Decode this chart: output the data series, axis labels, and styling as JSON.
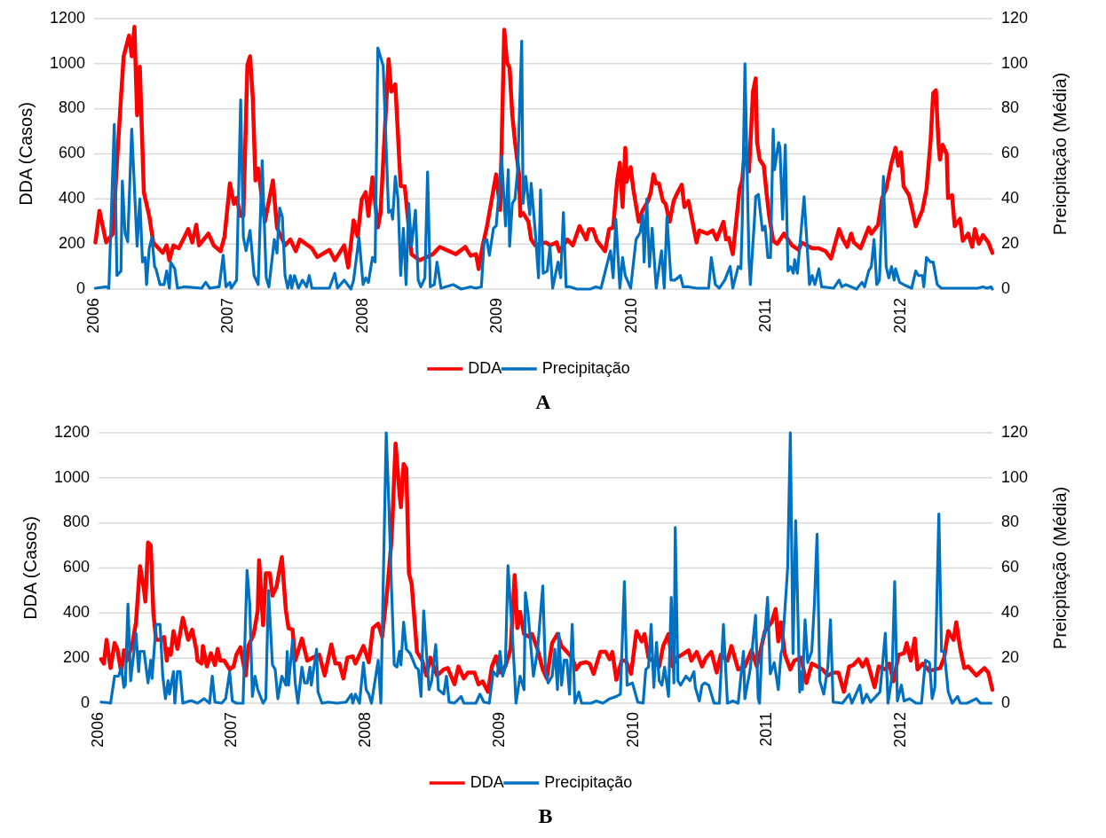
{
  "chart_data": [
    {
      "type": "line",
      "title": "A",
      "ylabel": "DDA (Casos)",
      "y2label": "Preicpitação (Média)",
      "xlim": [
        2006,
        2012.68
      ],
      "xticks": [
        2006,
        2007,
        2008,
        2009,
        2010,
        2011,
        2012
      ],
      "ylim": [
        0,
        1200
      ],
      "yticks": [
        0,
        200,
        400,
        600,
        800,
        1000,
        1200
      ],
      "y2lim": [
        0,
        120
      ],
      "y2ticks": [
        0,
        20,
        40,
        60,
        80,
        100,
        120
      ],
      "grid": "y",
      "legend": "bottom",
      "series": [
        {
          "name": "DDA",
          "color": "#ff0000",
          "x": [
            2006.01,
            2006.04,
            2006.09,
            2006.14,
            2006.17,
            2006.2,
            2006.22,
            2006.26,
            2006.28,
            2006.3,
            2006.32,
            2006.34,
            2006.37,
            2006.41,
            2006.44,
            2006.51,
            2006.54,
            2006.56,
            2006.59,
            2006.63,
            2006.7,
            2006.73,
            2006.76,
            2006.78,
            2006.85,
            2006.89,
            2006.94,
            2006.97,
            2007.01,
            2007.04,
            2007.06,
            2007.09,
            2007.11,
            2007.14,
            2007.16,
            2007.18,
            2007.2,
            2007.22,
            2007.27,
            2007.33,
            2007.36,
            2007.42,
            2007.46,
            2007.5,
            2007.53,
            2007.62,
            2007.66,
            2007.75,
            2007.79,
            2007.86,
            2007.89,
            2007.93,
            2007.96,
            2007.99,
            2008.02,
            2008.04,
            2008.07,
            2008.11,
            2008.13,
            2008.19,
            2008.21,
            2008.24,
            2008.28,
            2008.31,
            2008.36,
            2008.42,
            2008.52,
            2008.57,
            2008.69,
            2008.76,
            2008.8,
            2008.84,
            2008.86,
            2008.89,
            2008.92,
            2008.99,
            2009.02,
            2009.05,
            2009.07,
            2009.09,
            2009.11,
            2009.13,
            2009.16,
            2009.17,
            2009.19,
            2009.23,
            2009.25,
            2009.28,
            2009.36,
            2009.39,
            2009.44,
            2009.46,
            2009.52,
            2009.56,
            2009.61,
            2009.66,
            2009.68,
            2009.71,
            2009.74,
            2009.8,
            2009.83,
            2009.86,
            2009.89,
            2009.91,
            2009.93,
            2009.95,
            2009.96,
            2009.99,
            2010.01,
            2010.05,
            2010.08,
            2010.12,
            2010.14,
            2010.16,
            2010.18,
            2010.2,
            2010.23,
            2010.25,
            2010.28,
            2010.31,
            2010.34,
            2010.37,
            2010.39,
            2010.42,
            2010.45,
            2010.48,
            2010.5,
            2010.56,
            2010.6,
            2010.63,
            2010.68,
            2010.7,
            2010.72,
            2010.75,
            2010.8,
            2010.82,
            2010.84,
            2010.87,
            2010.9,
            2010.92,
            2010.93,
            2010.95,
            2010.98,
            2011.0,
            2011.02,
            2011.05,
            2011.08,
            2011.13,
            2011.16,
            2011.19,
            2011.24,
            2011.26,
            2011.3,
            2011.34,
            2011.39,
            2011.44,
            2011.48,
            2011.54,
            2011.57,
            2011.6,
            2011.63,
            2011.65,
            2011.7,
            2011.76,
            2011.78,
            2011.83,
            2011.86,
            2011.89,
            2011.93,
            2011.96,
            2011.98,
            2012.0,
            2012.02,
            2012.06,
            2012.09,
            2012.11,
            2012.16,
            2012.19,
            2012.22,
            2012.24,
            2012.26,
            2012.28,
            2012.29,
            2012.31,
            2012.34,
            2012.35,
            2012.38,
            2012.4,
            2012.44,
            2012.46,
            2012.5,
            2012.53,
            2012.55,
            2012.58,
            2012.61,
            2012.65,
            2012.68
          ],
          "values": [
            207,
            347,
            207,
            246,
            561,
            850,
            1033,
            1125,
            1033,
            1164,
            771,
            987,
            430,
            325,
            207,
            161,
            194,
            128,
            194,
            181,
            266,
            207,
            285,
            194,
            246,
            194,
            168,
            233,
            469,
            378,
            404,
            325,
            325,
            994,
            1033,
            850,
            482,
            535,
            299,
            482,
            273,
            194,
            220,
            168,
            220,
            181,
            142,
            174,
            128,
            194,
            96,
            305,
            233,
            397,
            430,
            325,
            496,
            273,
            338,
            1020,
            876,
            908,
            456,
            456,
            155,
            128,
            155,
            187,
            155,
            187,
            148,
            155,
            89,
            194,
            273,
            509,
            351,
            1151,
            1007,
            981,
            771,
            653,
            509,
            325,
            338,
            299,
            220,
            194,
            207,
            194,
            207,
            168,
            220,
            194,
            279,
            220,
            266,
            266,
            214,
            168,
            266,
            273,
            482,
            561,
            364,
            627,
            476,
            541,
            443,
            299,
            351,
            391,
            430,
            509,
            469,
            469,
            391,
            378,
            299,
            391,
            430,
            463,
            364,
            391,
            299,
            207,
            260,
            246,
            260,
            220,
            299,
            220,
            227,
            155,
            443,
            482,
            627,
            522,
            876,
            935,
            653,
            574,
            548,
            430,
            325,
            214,
            201,
            246,
            220,
            194,
            174,
            207,
            194,
            181,
            181,
            168,
            135,
            266,
            220,
            187,
            246,
            207,
            181,
            273,
            246,
            285,
            404,
            443,
            561,
            627,
            548,
            607,
            456,
            417,
            338,
            279,
            351,
            443,
            653,
            869,
            882,
            640,
            574,
            640,
            600,
            404,
            417,
            279,
            312,
            214,
            246,
            187,
            266,
            201,
            240,
            207,
            161
          ]
        },
        {
          "name": "Precipitação",
          "color": "#0070c0",
          "axis": "y2",
          "x": [
            2006.01,
            2006.09,
            2006.11,
            2006.15,
            2006.17,
            2006.2,
            2006.21,
            2006.23,
            2006.25,
            2006.28,
            2006.32,
            2006.34,
            2006.36,
            2006.38,
            2006.39,
            2006.41,
            2006.43,
            2006.45,
            2006.46,
            2006.49,
            2006.52,
            2006.54,
            2006.56,
            2006.57,
            2006.6,
            2006.62,
            2006.67,
            2006.8,
            2006.83,
            2006.86,
            2006.93,
            2006.96,
            2006.98,
            2007.01,
            2007.02,
            2007.06,
            2007.09,
            2007.11,
            2007.13,
            2007.16,
            2007.19,
            2007.22,
            2007.25,
            2007.28,
            2007.3,
            2007.34,
            2007.36,
            2007.38,
            2007.4,
            2007.42,
            2007.44,
            2007.46,
            2007.47,
            2007.49,
            2007.52,
            2007.55,
            2007.58,
            2007.6,
            2007.62,
            2007.75,
            2007.79,
            2007.81,
            2007.86,
            2007.91,
            2007.93,
            2007.97,
            2008.0,
            2008.02,
            2008.04,
            2008.07,
            2008.09,
            2008.11,
            2008.13,
            2008.15,
            2008.19,
            2008.21,
            2008.22,
            2008.24,
            2008.26,
            2008.28,
            2008.3,
            2008.32,
            2008.34,
            2008.36,
            2008.39,
            2008.41,
            2008.43,
            2008.46,
            2008.48,
            2008.5,
            2008.53,
            2008.55,
            2008.58,
            2008.67,
            2008.73,
            2008.8,
            2008.84,
            2008.88,
            2008.9,
            2008.92,
            2008.94,
            2008.97,
            2008.99,
            2009.01,
            2009.03,
            2009.06,
            2009.08,
            2009.09,
            2009.11,
            2009.13,
            2009.15,
            2009.18,
            2009.19,
            2009.21,
            2009.24,
            2009.25,
            2009.28,
            2009.305,
            2009.32,
            2009.34,
            2009.37,
            2009.39,
            2009.41,
            2009.45,
            2009.47,
            2009.49,
            2009.51,
            2009.54,
            2009.59,
            2009.69,
            2009.73,
            2009.77,
            2009.81,
            2009.84,
            2009.86,
            2009.88,
            2009.91,
            2009.93,
            2009.95,
            2009.99,
            2010.03,
            2010.06,
            2010.08,
            2010.09,
            2010.11,
            2010.13,
            2010.15,
            2010.18,
            2010.22,
            2010.24,
            2010.26,
            2010.29,
            2010.32,
            2010.36,
            2010.38,
            2010.42,
            2010.48,
            2010.53,
            2010.57,
            2010.59,
            2010.62,
            2010.65,
            2010.69,
            2010.73,
            2010.75,
            2010.79,
            2010.81,
            2010.82,
            2010.84,
            2010.87,
            2010.88,
            2010.91,
            2010.92,
            2010.94,
            2010.97,
            2010.99,
            2011.01,
            2011.03,
            2011.05,
            2011.06,
            2011.09,
            2011.1,
            2011.12,
            2011.14,
            2011.16,
            2011.18,
            2011.2,
            2011.21,
            2011.23,
            2011.28,
            2011.32,
            2011.34,
            2011.36,
            2011.39,
            2011.41,
            2011.5,
            2011.54,
            2011.56,
            2011.59,
            2011.67,
            2011.71,
            2011.73,
            2011.76,
            2011.78,
            2011.8,
            2011.82,
            2011.84,
            2011.87,
            2011.89,
            2011.91,
            2011.93,
            2011.95,
            2011.96,
            2011.99,
            2012.02,
            2012.08,
            2012.11,
            2012.13,
            2012.16,
            2012.17,
            2012.19,
            2012.22,
            2012.24,
            2012.27,
            2012.3,
            2012.57,
            2012.61,
            2012.64,
            2012.67,
            2012.68
          ],
          "values": [
            0.4,
            1,
            0.4,
            73,
            6,
            8,
            48,
            25,
            21,
            71,
            19,
            40,
            12,
            14,
            2,
            18,
            23,
            10,
            9,
            2,
            2,
            8,
            0.4,
            12,
            9,
            0.4,
            1,
            0.4,
            3,
            0.4,
            1,
            15,
            1,
            3,
            0.4,
            4,
            84,
            23,
            17,
            26,
            6,
            2,
            57,
            5,
            1,
            22,
            16,
            36,
            32,
            6,
            0.4,
            6,
            0.4,
            6,
            0.4,
            4,
            1,
            6,
            0.4,
            0.4,
            7,
            0.4,
            4,
            0,
            4,
            23,
            2,
            5,
            3,
            14,
            12,
            107,
            103,
            99,
            34,
            35,
            31,
            50,
            40,
            6,
            27,
            2,
            38,
            19,
            35,
            4,
            1,
            5,
            52,
            1,
            2,
            12,
            0.4,
            2,
            0,
            1,
            0.4,
            1,
            21,
            22,
            15,
            27,
            28,
            42,
            59,
            28,
            53,
            19,
            38,
            40,
            53,
            110,
            38,
            50,
            33,
            47,
            26,
            5,
            44,
            7,
            8,
            19,
            0.4,
            12,
            5,
            34,
            1,
            1,
            0,
            0,
            1,
            0.4,
            10,
            17,
            5,
            31,
            0.4,
            14,
            6,
            0.4,
            22,
            25,
            33,
            12,
            40,
            10,
            27,
            0.4,
            17,
            0.4,
            32,
            4,
            4,
            6,
            1,
            1,
            0.4,
            0.4,
            0.4,
            14,
            2,
            0.4,
            4,
            10,
            0.4,
            10,
            9,
            30,
            100,
            13,
            2,
            30,
            41,
            42,
            26,
            28,
            14,
            14,
            71,
            53,
            65,
            63,
            31,
            64,
            8,
            10,
            7,
            13,
            7,
            41,
            2,
            6,
            2,
            9,
            1,
            0.4,
            4,
            1,
            2,
            0,
            3,
            1,
            8,
            10,
            22,
            2,
            4,
            50,
            10,
            5,
            10,
            4,
            9,
            3,
            2,
            0.4,
            8,
            6,
            6,
            1,
            14,
            12,
            12,
            2,
            0.4,
            0.4,
            1,
            0.4,
            1,
            0
          ]
        }
      ]
    },
    {
      "type": "line",
      "title": "B",
      "ylabel": "DDA (Casos)",
      "y2label": "Preicpitação (Média)",
      "xlim": [
        2006,
        2012.68
      ],
      "xticks": [
        2006,
        2007,
        2008,
        2009,
        2010,
        2011,
        2012
      ],
      "ylim": [
        0,
        1200
      ],
      "yticks": [
        0,
        200,
        400,
        600,
        800,
        1000,
        1200
      ],
      "y2lim": [
        0,
        120
      ],
      "y2ticks": [
        0,
        20,
        40,
        60,
        80,
        100,
        120
      ],
      "grid": "y",
      "legend": "bottom",
      "series": [
        {
          "name": "DDA",
          "color": "#ff0000",
          "x": [
            2006.02,
            2006.04,
            2006.06,
            2006.09,
            2006.12,
            2006.14,
            2006.17,
            2006.19,
            2006.21,
            2006.25,
            2006.28,
            2006.31,
            2006.34,
            2006.35,
            2006.37,
            2006.39,
            2006.41,
            2006.43,
            2006.46,
            2006.49,
            2006.51,
            2006.52,
            2006.54,
            2006.56,
            2006.59,
            2006.63,
            2006.67,
            2006.7,
            2006.73,
            2006.74,
            2006.77,
            2006.78,
            2006.81,
            2006.84,
            2006.87,
            2006.89,
            2006.91,
            2006.94,
            2006.98,
            2007.01,
            2007.03,
            2007.06,
            2007.1,
            2007.12,
            2007.16,
            2007.19,
            2007.2,
            2007.23,
            2007.25,
            2007.28,
            2007.3,
            2007.33,
            2007.37,
            2007.4,
            2007.42,
            2007.45,
            2007.47,
            2007.52,
            2007.56,
            2007.6,
            2007.65,
            2007.69,
            2007.74,
            2007.77,
            2007.8,
            2007.83,
            2007.86,
            2007.9,
            2007.92,
            2007.98,
            2008.02,
            2008.05,
            2008.09,
            2008.12,
            2008.16,
            2008.19,
            2008.22,
            2008.25,
            2008.26,
            2008.28,
            2008.3,
            2008.32,
            2008.34,
            2008.38,
            2008.42,
            2008.45,
            2008.48,
            2008.53,
            2008.58,
            2008.61,
            2008.66,
            2008.69,
            2008.73,
            2008.76,
            2008.81,
            2008.84,
            2008.87,
            2008.91,
            2008.94,
            2008.97,
            2009.0,
            2009.04,
            2009.08,
            2009.11,
            2009.13,
            2009.15,
            2009.18,
            2009.22,
            2009.24,
            2009.28,
            2009.32,
            2009.35,
            2009.39,
            2009.43,
            2009.46,
            2009.5,
            2009.54,
            2009.57,
            2009.6,
            2009.64,
            2009.67,
            2009.7,
            2009.75,
            2009.79,
            2009.82,
            2009.84,
            2009.87,
            2009.91,
            2009.94,
            2009.98,
            2010.02,
            2010.06,
            2010.08,
            2010.11,
            2010.14,
            2010.19,
            2010.22,
            2010.26,
            2010.29,
            2010.32,
            2010.36,
            2010.41,
            2010.43,
            2010.47,
            2010.51,
            2010.54,
            2010.58,
            2010.62,
            2010.65,
            2010.7,
            2010.73,
            2010.78,
            2010.83,
            2010.88,
            2010.92,
            2010.95,
            2010.98,
            2011.03,
            2011.06,
            2011.08,
            2011.1,
            2011.13,
            2011.17,
            2011.2,
            2011.25,
            2011.29,
            2011.33,
            2011.37,
            2011.41,
            2011.45,
            2011.49,
            2011.53,
            2011.57,
            2011.61,
            2011.64,
            2011.68,
            2011.71,
            2011.74,
            2011.8,
            2011.83,
            2011.88,
            2011.91,
            2011.94,
            2011.98,
            2012.02,
            2012.04,
            2012.07,
            2012.1,
            2012.12,
            2012.16,
            2012.21,
            2012.25,
            2012.29,
            2012.32,
            2012.35,
            2012.39,
            2012.41,
            2012.44,
            2012.47,
            2012.5,
            2012.56,
            2012.62,
            2012.65,
            2012.68
          ],
          "values": [
            195,
            176,
            281,
            156,
            267,
            241,
            136,
            235,
            189,
            254,
            359,
            608,
            503,
            451,
            713,
            700,
            399,
            281,
            281,
            294,
            189,
            241,
            215,
            320,
            241,
            379,
            281,
            326,
            241,
            189,
            176,
            254,
            163,
            222,
            169,
            241,
            189,
            189,
            150,
            163,
            215,
            248,
            123,
            254,
            307,
            412,
            634,
            346,
            576,
            576,
            477,
            517,
            648,
            412,
            333,
            326,
            189,
            287,
            189,
            202,
            215,
            123,
            261,
            176,
            176,
            110,
            202,
            208,
            176,
            254,
            182,
            333,
            353,
            294,
            517,
            726,
            1152,
            923,
            870,
            1061,
            1041,
            576,
            530,
            228,
            189,
            123,
            202,
            123,
            150,
            156,
            84,
            163,
            110,
            136,
            136,
            84,
            97,
            51,
            163,
            208,
            136,
            163,
            241,
            569,
            333,
            405,
            307,
            294,
            307,
            241,
            150,
            110,
            267,
            307,
            254,
            228,
            202,
            150,
            176,
            182,
            176,
            130,
            228,
            228,
            195,
            228,
            104,
            189,
            189,
            130,
            320,
            274,
            307,
            202,
            189,
            163,
            254,
            307,
            163,
            202,
            215,
            235,
            189,
            228,
            163,
            202,
            228,
            136,
            215,
            189,
            254,
            150,
            163,
            235,
            163,
            241,
            320,
            359,
            418,
            274,
            359,
            215,
            150,
            189,
            202,
            90,
            176,
            163,
            150,
            123,
            136,
            136,
            51,
            163,
            169,
            195,
            163,
            195,
            71,
            163,
            150,
            176,
            97,
            215,
            222,
            267,
            189,
            287,
            150,
            176,
            143,
            150,
            156,
            202,
            320,
            281,
            359,
            241,
            156,
            163,
            123,
            156,
            136,
            60
          ]
        },
        {
          "name": "Precipitação",
          "color": "#0070c0",
          "axis": "y2",
          "x": [
            2006.02,
            2006.06,
            2006.09,
            2006.12,
            2006.15,
            2006.17,
            2006.19,
            2006.2,
            2006.22,
            2006.24,
            2006.28,
            2006.3,
            2006.31,
            2006.34,
            2006.37,
            2006.39,
            2006.4,
            2006.43,
            2006.46,
            2006.48,
            2006.5,
            2006.52,
            2006.53,
            2006.56,
            2006.57,
            2006.59,
            2006.61,
            2006.63,
            2006.68,
            2006.7,
            2006.74,
            2006.79,
            2006.83,
            2006.85,
            2006.87,
            2006.92,
            2006.95,
            2006.98,
            2007.0,
            2007.03,
            2007.08,
            2007.11,
            2007.13,
            2007.15,
            2007.17,
            2007.19,
            2007.23,
            2007.25,
            2007.27,
            2007.3,
            2007.32,
            2007.34,
            2007.37,
            2007.4,
            2007.41,
            2007.42,
            2007.45,
            2007.47,
            2007.49,
            2007.52,
            2007.54,
            2007.56,
            2007.58,
            2007.59,
            2007.63,
            2007.64,
            2007.67,
            2007.72,
            2007.78,
            2007.85,
            2007.89,
            2007.9,
            2007.92,
            2007.95,
            2007.98,
            2008.0,
            2008.02,
            2008.04,
            2008.09,
            2008.11,
            2008.15,
            2008.17,
            2008.19,
            2008.21,
            2008.23,
            2008.25,
            2008.26,
            2008.28,
            2008.3,
            2008.33,
            2008.37,
            2008.39,
            2008.41,
            2008.43,
            2008.47,
            2008.49,
            2008.52,
            2008.54,
            2008.58,
            2008.6,
            2008.62,
            2008.66,
            2008.71,
            2008.73,
            2008.82,
            2008.85,
            2008.88,
            2008.92,
            2008.95,
            2008.98,
            2009.0,
            2009.02,
            2009.04,
            2009.06,
            2009.09,
            2009.11,
            2009.12,
            2009.15,
            2009.18,
            2009.19,
            2009.21,
            2009.25,
            2009.28,
            2009.32,
            2009.34,
            2009.36,
            2009.39,
            2009.41,
            2009.43,
            2009.44,
            2009.46,
            2009.48,
            2009.5,
            2009.52,
            2009.54,
            2009.56,
            2009.59,
            2009.61,
            2009.68,
            2009.72,
            2009.77,
            2009.82,
            2009.87,
            2009.9,
            2009.93,
            2009.95,
            2009.99,
            2010.03,
            2010.07,
            2010.09,
            2010.11,
            2010.13,
            2010.15,
            2010.17,
            2010.19,
            2010.21,
            2010.23,
            2010.26,
            2010.28,
            2010.3,
            2010.31,
            2010.33,
            2010.35,
            2010.39,
            2010.42,
            2010.45,
            2010.46,
            2010.49,
            2010.51,
            2010.53,
            2010.56,
            2010.6,
            2010.64,
            2010.67,
            2010.7,
            2010.74,
            2010.78,
            2010.82,
            2010.83,
            2010.87,
            2010.91,
            2010.93,
            2010.94,
            2010.96,
            2010.98,
            2011.0,
            2011.02,
            2011.05,
            2011.08,
            2011.1,
            2011.11,
            2011.15,
            2011.17,
            2011.19,
            2011.21,
            2011.24,
            2011.25,
            2011.26,
            2011.28,
            2011.3,
            2011.33,
            2011.35,
            2011.37,
            2011.39,
            2011.42,
            2011.45,
            2011.47,
            2011.49,
            2011.56,
            2011.61,
            2011.63,
            2011.69,
            2011.71,
            2011.74,
            2011.77,
            2011.81,
            2011.84,
            2011.88,
            2011.9,
            2011.93,
            2011.95,
            2011.97,
            2012.0,
            2012.02,
            2012.06,
            2012.11,
            2012.15,
            2012.18,
            2012.21,
            2012.23,
            2012.25,
            2012.28,
            2012.3,
            2012.32,
            2012.35,
            2012.38,
            2012.42,
            2012.44,
            2012.49,
            2012.56,
            2012.59,
            2012.67
          ],
          "values": [
            0.5,
            0.3,
            0,
            12,
            12,
            16,
            7,
            8,
            44,
            10,
            31,
            14,
            23,
            23,
            9,
            19,
            11,
            35,
            35,
            12,
            2,
            10,
            4,
            14,
            0,
            14,
            14,
            0,
            1,
            1,
            0,
            2,
            0,
            12,
            0.5,
            0,
            2,
            14,
            1,
            0,
            0,
            59,
            44,
            3,
            12,
            6,
            0,
            2,
            50,
            17,
            15,
            2,
            12,
            8,
            23,
            8,
            28,
            9,
            0,
            16,
            9,
            9,
            16,
            8,
            24,
            5,
            0,
            0.5,
            0,
            0.5,
            4,
            0,
            4,
            0,
            18,
            6,
            4,
            0,
            19,
            0,
            120,
            88,
            50,
            17,
            16,
            23,
            17,
            36,
            24,
            22,
            16,
            15,
            3,
            41,
            6,
            10,
            26,
            6,
            4,
            12,
            0.5,
            0,
            3,
            0,
            0,
            4,
            0.5,
            0,
            14,
            12,
            23,
            12,
            16,
            61,
            33,
            12,
            0,
            12,
            6,
            49,
            40,
            12,
            23,
            52,
            14,
            9,
            12,
            24,
            6,
            31,
            8,
            19,
            19,
            4,
            35,
            0,
            5,
            0,
            0,
            1,
            0,
            2,
            3,
            4,
            54,
            8,
            9,
            0.5,
            0,
            15,
            16,
            35,
            7,
            27,
            10,
            8,
            16,
            3,
            47,
            9,
            78,
            10,
            8,
            12,
            10,
            14,
            7,
            1,
            8,
            9,
            8,
            0,
            0,
            35,
            0,
            1,
            0,
            23,
            2,
            15,
            39,
            2,
            0,
            28,
            31,
            47,
            13,
            18,
            6,
            22,
            24,
            60,
            120,
            22,
            81,
            5,
            14,
            6,
            37,
            18,
            23,
            44,
            75,
            10,
            4,
            16,
            37,
            0.5,
            0,
            4,
            0,
            8,
            0,
            4,
            0.5,
            3,
            5,
            31,
            0,
            12,
            54,
            1,
            8,
            1,
            2,
            0,
            0,
            19,
            18,
            2,
            7,
            84,
            23,
            23,
            5,
            0,
            3,
            0,
            0,
            2,
            0,
            0
          ]
        }
      ]
    }
  ]
}
